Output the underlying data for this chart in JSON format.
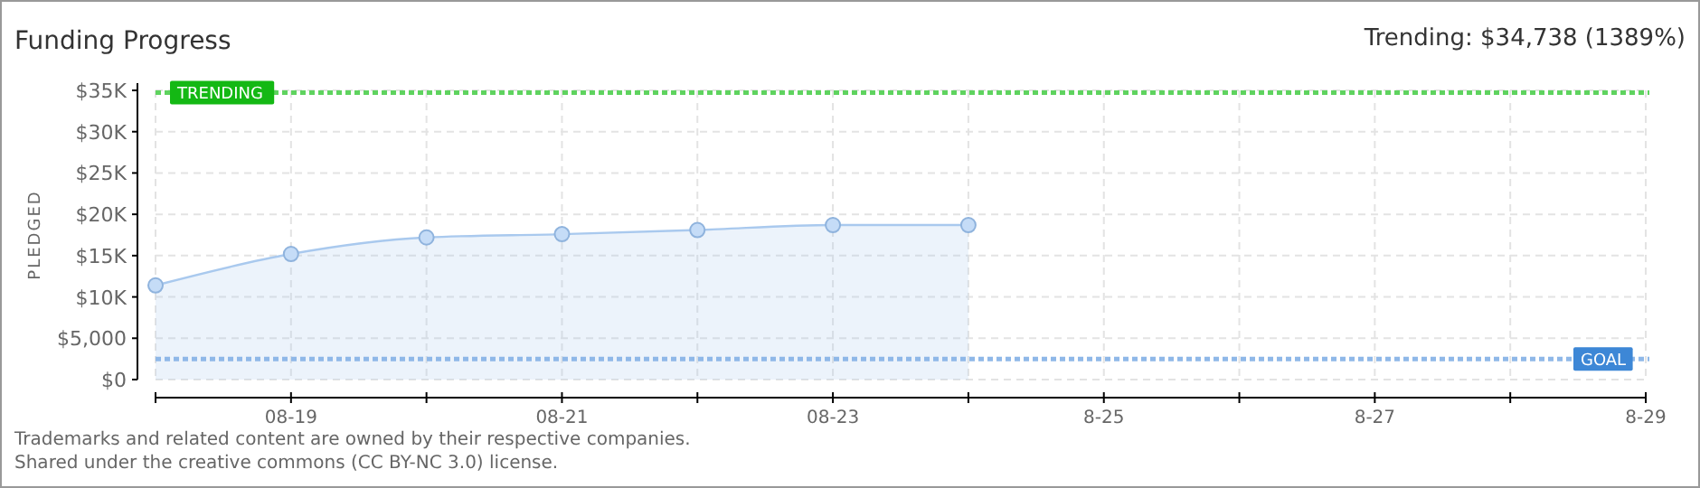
{
  "chart_data": {
    "type": "area",
    "title": "Funding Progress",
    "subtitle": "Trending: $34,738 (1389%)",
    "ylabel": "PLEDGED",
    "x": [
      "--08-18",
      "--08-19",
      "--08-20",
      "--08-21",
      "--08-22",
      "--08-23",
      "--08-24"
    ],
    "series": [
      {
        "color": "#a9c9ee",
        "values": [
          11400,
          15200,
          17200,
          17600,
          18100,
          18700,
          18700
        ]
      }
    ],
    "xlim": [
      "--08-18",
      "--08-29"
    ],
    "xticks": [
      {
        "value": "--08-18",
        "label": null
      },
      {
        "value": "--08-19",
        "label": "08-19"
      },
      {
        "value": "--08-20",
        "label": null
      },
      {
        "value": "--08-21",
        "label": "08-21"
      },
      {
        "value": "--08-22",
        "label": null
      },
      {
        "value": "--08-23",
        "label": "08-23"
      },
      {
        "value": "--08-24",
        "label": null
      },
      {
        "value": "--08-25",
        "label": "8-25"
      },
      {
        "value": "--08-26",
        "label": null
      },
      {
        "value": "--08-27",
        "label": "8-27"
      },
      {
        "value": "--08-28",
        "label": null
      },
      {
        "value": "--08-29",
        "label": "8-29"
      }
    ],
    "ylim": [
      0,
      35000
    ],
    "yticks": [
      {
        "value": 0,
        "label": "$0"
      },
      {
        "value": 5000,
        "label": "$5,000"
      },
      {
        "value": 10000,
        "label": "$10K"
      },
      {
        "value": 15000,
        "label": "$15K"
      },
      {
        "value": 20000,
        "label": "$20K"
      },
      {
        "value": 25000,
        "label": "$25K"
      },
      {
        "value": 30000,
        "label": "$30K"
      },
      {
        "value": 35000,
        "label": "$35K"
      }
    ],
    "ref_lines": [
      {
        "axis": "y",
        "value": 34738,
        "label": "TRENDING",
        "color": "#5fd35f",
        "line_style": "dotted"
      },
      {
        "axis": "y",
        "value": 2500,
        "label": "GOAL",
        "color": "#8fb8e8",
        "line_style": "dotted"
      }
    ],
    "grid": true,
    "marker": "circle",
    "annotations": [
      "Trademarks and related content are owned by their respective companies.",
      "Shared under the creative commons (CC BY-NC 3.0) license."
    ]
  }
}
